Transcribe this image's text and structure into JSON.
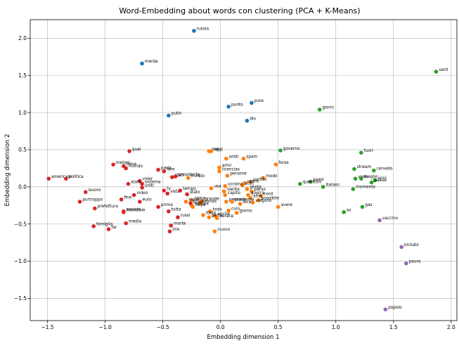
{
  "chart_data": {
    "type": "scatter",
    "title": "Word-Embedding about words con clustering (PCA + K-Means)",
    "xlabel": "Embedding dimension 1",
    "ylabel": "Embedding dimension 2",
    "xlim": [
      -1.65,
      2.05
    ],
    "ylim": [
      -1.8,
      2.25
    ],
    "xticks": [
      -1.5,
      -1.0,
      -0.5,
      0.0,
      0.5,
      1.0,
      1.5,
      2.0
    ],
    "yticks": [
      -1.5,
      -1.0,
      -0.5,
      0.0,
      0.5,
      1.0,
      1.5,
      2.0
    ],
    "xtick_labels": [
      "−1.5",
      "−1.0",
      "−0.5",
      "0.0",
      "0.5",
      "1.0",
      "1.5",
      "2.0"
    ],
    "ytick_labels": [
      "−1.5",
      "−1.0",
      "−0.5",
      "0.0",
      "0.5",
      "1.0",
      "1.5",
      "2.0"
    ],
    "grid": true,
    "clusters": [
      {
        "color": "#1f77b4",
        "points": [
          {
            "x": -0.23,
            "y": 2.1,
            "label": "russia"
          },
          {
            "x": -0.68,
            "y": 1.66,
            "label": "merda"
          },
          {
            "x": -0.45,
            "y": 0.96,
            "label": "putin"
          },
          {
            "x": 0.07,
            "y": 1.08,
            "label": "punto"
          },
          {
            "x": 0.27,
            "y": 1.13,
            "label": "pure"
          },
          {
            "x": 0.23,
            "y": 0.89,
            "label": "dio"
          }
        ]
      },
      {
        "color": "#ff7f0e",
        "points": [
          {
            "x": -0.1,
            "y": 0.48,
            "label": "mai"
          },
          {
            "x": -0.08,
            "y": 0.48,
            "label": "oggi"
          },
          {
            "x": 0.05,
            "y": 0.38,
            "label": "soldi"
          },
          {
            "x": 0.2,
            "y": 0.38,
            "label": "spam"
          },
          {
            "x": 0.48,
            "y": 0.3,
            "label": "forse"
          },
          {
            "x": -0.01,
            "y": 0.26,
            "label": "armi"
          },
          {
            "x": -0.01,
            "y": 0.21,
            "label": "licencias"
          },
          {
            "x": 0.06,
            "y": 0.15,
            "label": "persone"
          },
          {
            "x": 0.37,
            "y": 0.12,
            "label": "modo"
          },
          {
            "x": 0.26,
            "y": 0.07,
            "label": "partito"
          },
          {
            "x": 0.21,
            "y": 0.05,
            "label": "uomo"
          },
          {
            "x": 0.19,
            "y": 0.02,
            "label": "stati"
          },
          {
            "x": 0.04,
            "y": 0.01,
            "label": "ucraina"
          },
          {
            "x": -0.08,
            "y": -0.02,
            "label": "usa"
          },
          {
            "x": 0.03,
            "y": -0.06,
            "label": "niente"
          },
          {
            "x": 0.23,
            "y": -0.03,
            "label": "gente"
          },
          {
            "x": 0.27,
            "y": -0.06,
            "label": "perso"
          },
          {
            "x": 0.04,
            "y": -0.11,
            "label": "capito"
          },
          {
            "x": 0.24,
            "y": -0.11,
            "label": "guerra"
          },
          {
            "x": 0.35,
            "y": -0.12,
            "label": "nord"
          },
          {
            "x": 0.26,
            "y": -0.15,
            "label": "altro"
          },
          {
            "x": 0.33,
            "y": -0.18,
            "label": "possibile"
          },
          {
            "x": -0.25,
            "y": -0.18,
            "label": "colpa"
          },
          {
            "x": -0.16,
            "y": -0.19,
            "label": "grande"
          },
          {
            "x": -0.3,
            "y": -0.2,
            "label": "vuole"
          },
          {
            "x": 0.05,
            "y": -0.2,
            "label": "pensare"
          },
          {
            "x": 0.1,
            "y": -0.2,
            "label": "problema"
          },
          {
            "x": 0.17,
            "y": -0.23,
            "label": "dice"
          },
          {
            "x": 0.28,
            "y": -0.21,
            "label": "volgono"
          },
          {
            "x": 0.5,
            "y": -0.27,
            "label": "avere"
          },
          {
            "x": -0.18,
            "y": -0.22,
            "label": "mondo"
          },
          {
            "x": -0.25,
            "y": -0.25,
            "label": "europa"
          },
          {
            "x": -0.24,
            "y": -0.27,
            "label": "dopo"
          },
          {
            "x": -0.09,
            "y": -0.33,
            "label": "todo"
          },
          {
            "x": 0.07,
            "y": -0.32,
            "label": "culo"
          },
          {
            "x": 0.14,
            "y": -0.35,
            "label": "giorno"
          },
          {
            "x": -0.15,
            "y": -0.38,
            "label": "italia"
          },
          {
            "x": -0.05,
            "y": -0.39,
            "label": "anche"
          },
          {
            "x": -0.1,
            "y": -0.41,
            "label": "parte"
          },
          {
            "x": -0.03,
            "y": -0.42,
            "label": "verace"
          },
          {
            "x": -0.05,
            "y": -0.6,
            "label": "nuovo"
          },
          {
            "x": -0.28,
            "y": 0.12,
            "label": "inviato"
          }
        ]
      },
      {
        "color": "#2ca02c",
        "points": [
          {
            "x": 1.87,
            "y": 1.55,
            "label": "verit"
          },
          {
            "x": 0.86,
            "y": 1.04,
            "label": "giorni"
          },
          {
            "x": 0.52,
            "y": 0.49,
            "label": "governo"
          },
          {
            "x": 1.22,
            "y": 0.46,
            "label": "fuori"
          },
          {
            "x": 1.16,
            "y": 0.24,
            "label": "stream"
          },
          {
            "x": 1.33,
            "y": 0.22,
            "label": "cervello"
          },
          {
            "x": 1.17,
            "y": 0.11,
            "label": "vedo"
          },
          {
            "x": 1.22,
            "y": 0.11,
            "label": "meglio"
          },
          {
            "x": 1.34,
            "y": 0.09,
            "label": "anni"
          },
          {
            "x": 1.31,
            "y": 0.06,
            "label": "paese"
          },
          {
            "x": 0.78,
            "y": 0.07,
            "label": "paesi"
          },
          {
            "x": 0.69,
            "y": 0.04,
            "label": "questioni"
          },
          {
            "x": 0.89,
            "y": 0.0,
            "label": "italiani"
          },
          {
            "x": 1.15,
            "y": -0.03,
            "label": "momento"
          },
          {
            "x": 1.23,
            "y": -0.27,
            "label": "gas"
          },
          {
            "x": 1.07,
            "y": -0.34,
            "label": "so"
          }
        ]
      },
      {
        "color": "#d62728",
        "points": [
          {
            "x": -0.79,
            "y": 0.48,
            "label": "quel"
          },
          {
            "x": -0.93,
            "y": 0.3,
            "label": "meloni"
          },
          {
            "x": -0.84,
            "y": 0.28,
            "label": "bene"
          },
          {
            "x": -0.82,
            "y": 0.25,
            "label": "mondo"
          },
          {
            "x": -0.54,
            "y": 0.23,
            "label": "parla"
          },
          {
            "x": -0.49,
            "y": 0.21,
            "label": "fare"
          },
          {
            "x": -0.42,
            "y": 0.13,
            "label": "stati"
          },
          {
            "x": -0.39,
            "y": 0.14,
            "label": "presidente"
          },
          {
            "x": -1.49,
            "y": 0.11,
            "label": "americani"
          },
          {
            "x": -1.34,
            "y": 0.11,
            "label": "politica"
          },
          {
            "x": -0.7,
            "y": 0.08,
            "label": "voler"
          },
          {
            "x": -0.8,
            "y": 0.04,
            "label": "stato"
          },
          {
            "x": -0.68,
            "y": 0.04,
            "label": "sistema"
          },
          {
            "x": -0.68,
            "y": -0.01,
            "label": "uniti"
          },
          {
            "x": -0.49,
            "y": -0.05,
            "label": "tv"
          },
          {
            "x": -0.46,
            "y": -0.09,
            "label": "vista"
          },
          {
            "x": -1.17,
            "y": -0.07,
            "label": "lavoro"
          },
          {
            "x": -0.75,
            "y": -0.11,
            "label": "video"
          },
          {
            "x": -0.86,
            "y": -0.17,
            "label": "fine"
          },
          {
            "x": -0.7,
            "y": -0.2,
            "label": "euro"
          },
          {
            "x": -1.22,
            "y": -0.2,
            "label": "purtroppo"
          },
          {
            "x": -1.09,
            "y": -0.29,
            "label": "prefettura"
          },
          {
            "x": -0.54,
            "y": -0.27,
            "label": "prima"
          },
          {
            "x": -0.45,
            "y": -0.33,
            "label": "tutta"
          },
          {
            "x": -0.84,
            "y": -0.33,
            "label": "sociale"
          },
          {
            "x": -0.84,
            "y": -0.34,
            "label": "mondiale"
          },
          {
            "x": -0.37,
            "y": -0.41,
            "label": "russi"
          },
          {
            "x": -0.82,
            "y": -0.49,
            "label": "media"
          },
          {
            "x": -1.1,
            "y": -0.53,
            "label": "famiglia"
          },
          {
            "x": -0.97,
            "y": -0.57,
            "label": "far"
          },
          {
            "x": -0.43,
            "y": -0.52,
            "label": "morte"
          },
          {
            "x": -0.44,
            "y": -0.6,
            "label": "link"
          },
          {
            "x": -0.35,
            "y": -0.05,
            "label": "tempo"
          },
          {
            "x": -0.29,
            "y": -0.1,
            "label": "stato"
          },
          {
            "x": -0.26,
            "y": -0.22,
            "label": "prog."
          }
        ]
      },
      {
        "color": "#9467bd",
        "points": [
          {
            "x": 1.38,
            "y": -0.45,
            "label": "vaccino"
          },
          {
            "x": 1.57,
            "y": -0.81,
            "label": "kickato"
          },
          {
            "x": 1.61,
            "y": -1.03,
            "label": "paura"
          },
          {
            "x": 1.43,
            "y": -1.65,
            "label": "popolo"
          }
        ]
      }
    ]
  }
}
